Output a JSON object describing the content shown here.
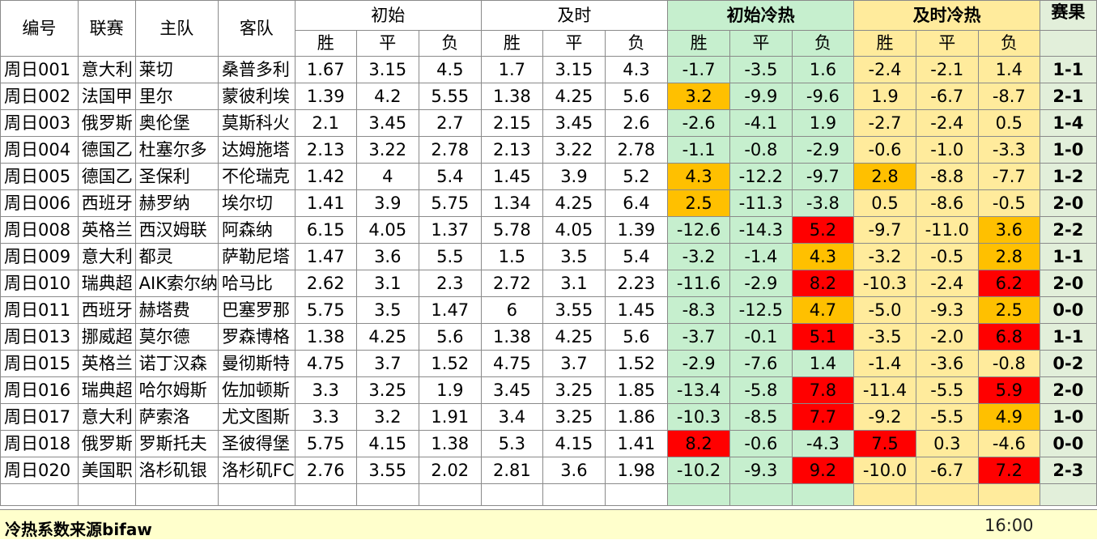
{
  "headers": {
    "id": "编号",
    "league": "联赛",
    "home": "主队",
    "away": "客队",
    "initial": "初始",
    "live": "及时",
    "initial_heat": "初始冷热",
    "live_heat": "及时冷热",
    "result": "赛果",
    "win": "胜",
    "draw": "平",
    "loss": "负"
  },
  "colors": {
    "initial_heat_bg": "#c6efce",
    "live_heat_bg": "#ffeb9c",
    "hot_orange": "#ffc000",
    "hot_red": "#ff0000",
    "result_bg": "#e2efda",
    "footer_bg": "#ffffcc"
  },
  "rows": [
    {
      "id": "周日001",
      "league": "意大利",
      "home": "莱切",
      "away": "桑普多利",
      "iw": "1.67",
      "id_": "3.15",
      "il": "4.5",
      "lw": "1.7",
      "ld": "3.15",
      "ll": "4.3",
      "ihw": "-1.7",
      "ihd": "-3.5",
      "ihl": "1.6",
      "lhw": "-2.4",
      "lhd": "-2.1",
      "lhl": "1.4",
      "result": "1-1"
    },
    {
      "id": "周日002",
      "league": "法国甲",
      "home": "里尔",
      "away": "蒙彼利埃",
      "iw": "1.39",
      "id_": "4.2",
      "il": "5.55",
      "lw": "1.38",
      "ld": "4.25",
      "ll": "5.6",
      "ihw": "3.2",
      "ihd": "-9.9",
      "ihl": "-9.6",
      "lhw": "1.9",
      "lhd": "-6.7",
      "lhl": "-8.7",
      "result": "2-1"
    },
    {
      "id": "周日003",
      "league": "俄罗斯",
      "home": "奥伦堡",
      "away": "莫斯科火",
      "iw": "2.1",
      "id_": "3.45",
      "il": "2.7",
      "lw": "2.15",
      "ld": "3.45",
      "ll": "2.6",
      "ihw": "-2.6",
      "ihd": "-4.1",
      "ihl": "1.9",
      "lhw": "-2.7",
      "lhd": "-2.4",
      "lhl": "0.5",
      "result": "1-4"
    },
    {
      "id": "周日004",
      "league": "德国乙",
      "home": "杜塞尔多",
      "away": "达姆施塔",
      "iw": "2.13",
      "id_": "3.22",
      "il": "2.78",
      "lw": "2.13",
      "ld": "3.22",
      "ll": "2.78",
      "ihw": "-1.1",
      "ihd": "-0.8",
      "ihl": "-2.9",
      "lhw": "-0.6",
      "lhd": "-1.0",
      "lhl": "-3.3",
      "result": "1-0"
    },
    {
      "id": "周日005",
      "league": "德国乙",
      "home": "圣保利",
      "away": "不伦瑞克",
      "iw": "1.42",
      "id_": "4",
      "il": "5.4",
      "lw": "1.45",
      "ld": "3.9",
      "ll": "5.2",
      "ihw": "4.3",
      "ihd": "-12.2",
      "ihl": "-9.7",
      "lhw": "2.8",
      "lhd": "-8.8",
      "lhl": "-7.7",
      "result": "1-2"
    },
    {
      "id": "周日006",
      "league": "西班牙",
      "home": "赫罗纳",
      "away": "埃尔切",
      "iw": "1.41",
      "id_": "3.9",
      "il": "5.75",
      "lw": "1.34",
      "ld": "4.25",
      "ll": "6.4",
      "ihw": "2.5",
      "ihd": "-11.3",
      "ihl": "-3.8",
      "lhw": "0.5",
      "lhd": "-8.6",
      "lhl": "-0.5",
      "result": "2-0"
    },
    {
      "id": "周日008",
      "league": "英格兰",
      "home": "西汉姆联",
      "away": "阿森纳",
      "iw": "6.15",
      "id_": "4.05",
      "il": "1.37",
      "lw": "5.78",
      "ld": "4.05",
      "ll": "1.39",
      "ihw": "-12.6",
      "ihd": "-14.3",
      "ihl": "5.2",
      "lhw": "-9.7",
      "lhd": "-11.0",
      "lhl": "3.6",
      "result": "2-2"
    },
    {
      "id": "周日009",
      "league": "意大利",
      "home": "都灵",
      "away": "萨勒尼塔",
      "iw": "1.47",
      "id_": "3.6",
      "il": "5.5",
      "lw": "1.5",
      "ld": "3.5",
      "ll": "5.4",
      "ihw": "-3.2",
      "ihd": "-1.4",
      "ihl": "4.3",
      "lhw": "-3.2",
      "lhd": "-0.5",
      "lhl": "2.8",
      "result": "1-1"
    },
    {
      "id": "周日010",
      "league": "瑞典超",
      "home": "AIK索尔纳",
      "away": "哈马比",
      "iw": "2.62",
      "id_": "3.1",
      "il": "2.3",
      "lw": "2.72",
      "ld": "3.1",
      "ll": "2.23",
      "ihw": "-11.6",
      "ihd": "-2.9",
      "ihl": "8.2",
      "lhw": "-10.3",
      "lhd": "-2.4",
      "lhl": "6.2",
      "result": "2-0"
    },
    {
      "id": "周日011",
      "league": "西班牙",
      "home": "赫塔费",
      "away": "巴塞罗那",
      "iw": "5.75",
      "id_": "3.5",
      "il": "1.47",
      "lw": "6",
      "ld": "3.55",
      "ll": "1.45",
      "ihw": "-8.3",
      "ihd": "-12.5",
      "ihl": "4.7",
      "lhw": "-5.0",
      "lhd": "-9.3",
      "lhl": "2.5",
      "result": "0-0"
    },
    {
      "id": "周日013",
      "league": "挪威超",
      "home": "莫尔德",
      "away": "罗森博格",
      "iw": "1.38",
      "id_": "4.25",
      "il": "5.6",
      "lw": "1.38",
      "ld": "4.25",
      "ll": "5.6",
      "ihw": "-3.7",
      "ihd": "-0.1",
      "ihl": "5.1",
      "lhw": "-3.5",
      "lhd": "-2.0",
      "lhl": "6.8",
      "result": "1-1"
    },
    {
      "id": "周日015",
      "league": "英格兰",
      "home": "诺丁汉森",
      "away": "曼彻斯特",
      "iw": "4.75",
      "id_": "3.7",
      "il": "1.52",
      "lw": "4.75",
      "ld": "3.7",
      "ll": "1.52",
      "ihw": "-2.9",
      "ihd": "-7.6",
      "ihl": "1.4",
      "lhw": "-1.4",
      "lhd": "-3.6",
      "lhl": "-0.8",
      "result": "0-2"
    },
    {
      "id": "周日016",
      "league": "瑞典超",
      "home": "哈尔姆斯",
      "away": "佐加顿斯",
      "iw": "3.3",
      "id_": "3.25",
      "il": "1.9",
      "lw": "3.45",
      "ld": "3.25",
      "ll": "1.85",
      "ihw": "-13.4",
      "ihd": "-5.8",
      "ihl": "7.8",
      "lhw": "-11.4",
      "lhd": "-5.5",
      "lhl": "5.9",
      "result": "2-0"
    },
    {
      "id": "周日017",
      "league": "意大利",
      "home": "萨索洛",
      "away": "尤文图斯",
      "iw": "3.3",
      "id_": "3.2",
      "il": "1.91",
      "lw": "3.4",
      "ld": "3.25",
      "ll": "1.86",
      "ihw": "-10.3",
      "ihd": "-8.5",
      "ihl": "7.7",
      "lhw": "-9.2",
      "lhd": "-5.5",
      "lhl": "4.9",
      "result": "1-0"
    },
    {
      "id": "周日018",
      "league": "俄罗斯",
      "home": "罗斯托夫",
      "away": "圣彼得堡",
      "iw": "5.75",
      "id_": "4.15",
      "il": "1.38",
      "lw": "5.3",
      "ld": "4.15",
      "ll": "1.41",
      "ihw": "8.2",
      "ihd": "-0.6",
      "ihl": "-4.3",
      "lhw": "7.5",
      "lhd": "0.3",
      "lhl": "-4.6",
      "result": "0-0"
    },
    {
      "id": "周日020",
      "league": "美国职",
      "home": "洛杉矶银",
      "away": "洛杉矶FC",
      "iw": "2.76",
      "id_": "3.55",
      "il": "2.02",
      "lw": "2.81",
      "ld": "3.6",
      "ll": "1.98",
      "ihw": "-10.2",
      "ihd": "-9.3",
      "ihl": "9.2",
      "lhw": "-10.0",
      "lhd": "-6.7",
      "lhl": "7.2",
      "result": "2-3"
    }
  ],
  "highlights": {
    "周日002": {
      "ihw": "orange"
    },
    "周日005": {
      "ihw": "orange",
      "lhw": "orange"
    },
    "周日006": {
      "ihw": "orange"
    },
    "周日008": {
      "ihl": "red",
      "lhl": "orange"
    },
    "周日009": {
      "ihl": "orange",
      "lhl": "orange"
    },
    "周日010": {
      "ihl": "red",
      "lhl": "red"
    },
    "周日011": {
      "ihl": "orange",
      "lhl": "orange"
    },
    "周日013": {
      "ihl": "red",
      "lhl": "red"
    },
    "周日016": {
      "ihl": "red",
      "lhl": "red"
    },
    "周日017": {
      "ihl": "red",
      "lhl": "orange"
    },
    "周日018": {
      "ihw": "red",
      "lhw": "red"
    },
    "周日020": {
      "ihl": "red",
      "lhl": "red"
    }
  },
  "footer": {
    "source": "冷热系数来源bifaw",
    "time": "16:00"
  }
}
